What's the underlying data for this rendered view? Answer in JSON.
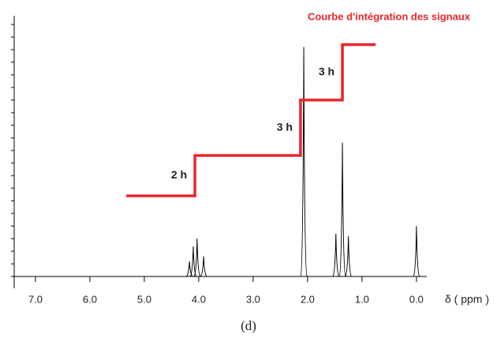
{
  "chart_data": {
    "type": "spectrum",
    "title": "Courbe d'intégration des signaux",
    "title_color": "#e8262b",
    "x_label": "δ ( ppm )",
    "caption": "(d)",
    "xlim": [
      7.39,
      -0.19
    ],
    "ylim": [
      0,
      100
    ],
    "xticks": [
      {
        "value": 7,
        "label": "7.0"
      },
      {
        "value": 6,
        "label": "6.0"
      },
      {
        "value": 5,
        "label": "5.0"
      },
      {
        "value": 4,
        "label": "4.0"
      },
      {
        "value": 3,
        "label": "3.0"
      },
      {
        "value": 2,
        "label": "2.0"
      },
      {
        "value": 1,
        "label": "1.0"
      },
      {
        "value": 0,
        "label": "0.0"
      }
    ],
    "yticks": [
      0,
      5,
      10,
      15,
      20,
      25,
      30,
      35,
      40,
      45,
      50,
      55,
      60,
      65,
      70,
      75,
      80,
      85,
      90,
      95,
      100
    ],
    "peaks": {
      "color": "#000000",
      "x": [
        4.17,
        4.1,
        4.03,
        3.91,
        2.07,
        1.48,
        1.36,
        1.25,
        0
      ],
      "values": [
        6,
        12,
        15,
        8,
        91,
        17,
        53,
        16,
        20
      ]
    },
    "integral": {
      "color": "#e8262b",
      "x": [
        5.33,
        4.07,
        4.07,
        2.13,
        2.13,
        1.36,
        1.36,
        0.75
      ],
      "values": [
        32,
        32,
        48,
        48,
        70,
        70,
        92,
        92
      ]
    },
    "annotations": [
      "2 h",
      "3 h",
      "3 h"
    ]
  }
}
